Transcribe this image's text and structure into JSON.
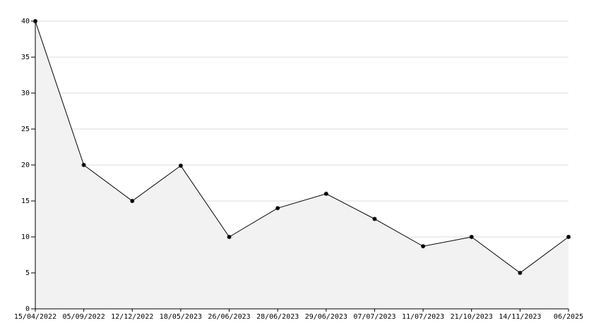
{
  "chart_data": {
    "type": "line",
    "categories": [
      "15/04/2022",
      "05/09/2022",
      "12/12/2022",
      "18/05/2023",
      "26/06/2023",
      "28/06/2023",
      "29/06/2023",
      "07/07/2023",
      "11/07/2023",
      "21/10/2023",
      "14/11/2023",
      "06/2025"
    ],
    "values": [
      40,
      20,
      15,
      19.9,
      10,
      14,
      16,
      12.5,
      8.7,
      10,
      5,
      10
    ],
    "color": "#000000",
    "area_color": "#f2f2f2",
    "ylim": [
      0,
      40
    ],
    "yticks": [
      0,
      5,
      10,
      15,
      20,
      25,
      30,
      35,
      40
    ],
    "grid": true
  }
}
